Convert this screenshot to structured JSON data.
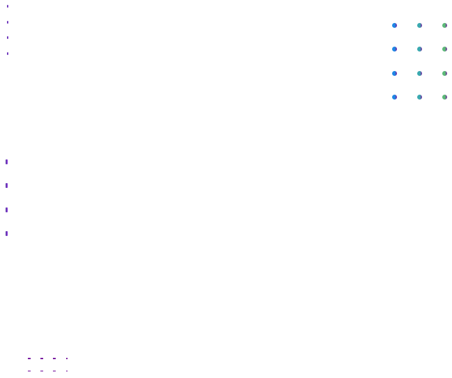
{
  "colors": {
    "bar": "#5a4a9a",
    "bar_edge": "#8a2be2",
    "dot_columns": [
      "#1e88e5",
      "#3aa9b0",
      "#5cba78"
    ],
    "dot_edge": "#7b1fa2",
    "dash": "#7b1fa2"
  },
  "grid": {
    "rows": 4,
    "columns": 3
  }
}
